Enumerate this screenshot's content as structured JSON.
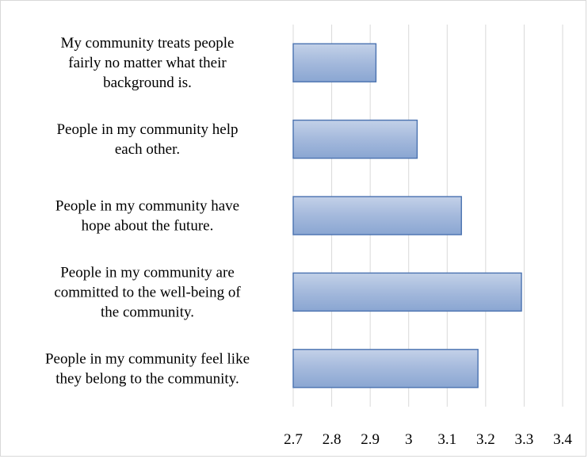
{
  "chart_data": {
    "type": "bar",
    "orientation": "horizontal",
    "categories": [
      [
        "My community treats people",
        "fairly no matter what their",
        "background is."
      ],
      [
        "People in my community help",
        "each other."
      ],
      [
        "People in my community have",
        "hope about the future."
      ],
      [
        "People in my community are",
        "committed to the well-being of",
        "the community."
      ],
      [
        "People in my community feel like",
        "they belong to the community."
      ]
    ],
    "values": [
      2.915,
      3.022,
      3.137,
      3.293,
      3.18
    ],
    "xlim": [
      2.7,
      3.4
    ],
    "xticks": [
      "2.7",
      "2.8",
      "2.9",
      "3",
      "3.1",
      "3.2",
      "3.3",
      "3.4"
    ],
    "title": "",
    "xlabel": "",
    "ylabel": "",
    "grid": "vertical",
    "legend": "none",
    "bar_color": "#a4b9dc",
    "bar_color_light": "#c3d1e8",
    "bar_color_dark": "#8aa6d2",
    "bar_edge_color": "#4a72b0"
  }
}
